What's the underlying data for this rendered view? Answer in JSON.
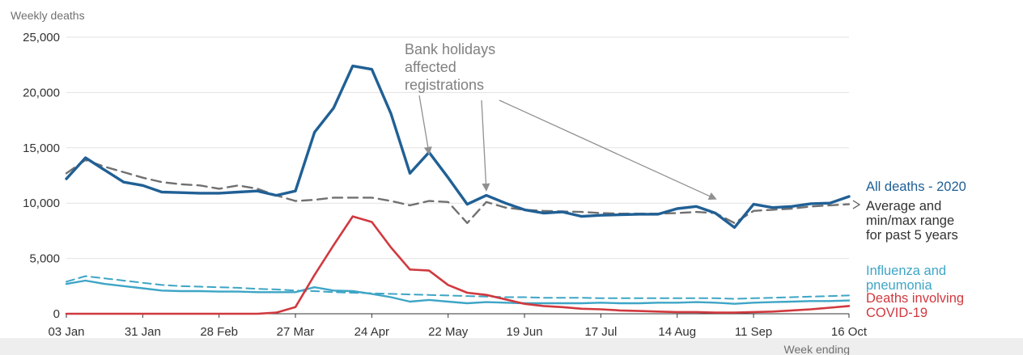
{
  "chart_data": {
    "type": "line",
    "ylabel": "Weekly deaths",
    "xlabel": "Week ending",
    "ylim": [
      0,
      25000
    ],
    "y_ticks": [
      "0",
      "5,000",
      "10,000",
      "15,000",
      "20,000",
      "25,000"
    ],
    "y_tick_values": [
      0,
      5000,
      10000,
      15000,
      20000,
      25000
    ],
    "x_ticks": [
      "03 Jan",
      "31 Jan",
      "28 Feb",
      "27 Mar",
      "24 Apr",
      "22 May",
      "19 Jun",
      "17 Jul",
      "14 Aug",
      "11 Sep",
      "16 Oct"
    ],
    "x_tick_weeks": [
      1,
      5,
      9,
      13,
      17,
      21,
      25,
      29,
      33,
      37,
      42
    ],
    "weeks": [
      1,
      2,
      3,
      4,
      5,
      6,
      7,
      8,
      9,
      10,
      11,
      12,
      13,
      14,
      15,
      16,
      17,
      18,
      19,
      20,
      21,
      22,
      23,
      24,
      25,
      26,
      27,
      28,
      29,
      30,
      31,
      32,
      33,
      34,
      35,
      36,
      37,
      38,
      39,
      40,
      41,
      42
    ],
    "grid": true,
    "series": [
      {
        "name": "All deaths - 2020",
        "color": "#206095",
        "style": "solid",
        "values": [
          12200,
          14100,
          13000,
          11900,
          11600,
          11000,
          10950,
          10900,
          10900,
          11000,
          11100,
          10700,
          11100,
          16400,
          18600,
          22400,
          22100,
          18100,
          12700,
          14600,
          12300,
          9900,
          10700,
          10000,
          9400,
          9100,
          9200,
          8800,
          8900,
          8950,
          9000,
          9000,
          9500,
          9700,
          9100,
          7800,
          9900,
          9600,
          9700,
          9950,
          10000,
          10600
        ]
      },
      {
        "name": "Average and min/max range for past 5 years",
        "color": "#707070",
        "style": "dashed",
        "values": [
          12700,
          13900,
          13300,
          12800,
          12300,
          11900,
          11700,
          11600,
          11300,
          11600,
          11300,
          10700,
          10200,
          10300,
          10500,
          10500,
          10500,
          10200,
          9800,
          10200,
          10100,
          8200,
          10100,
          9600,
          9400,
          9300,
          9250,
          9200,
          9100,
          9050,
          9050,
          9050,
          9100,
          9200,
          9100,
          8200,
          9300,
          9400,
          9500,
          9700,
          9800,
          9900
        ]
      },
      {
        "name": "Influenza and pneumonia",
        "color": "#3ea5c6",
        "style": "solid",
        "values": [
          2700,
          3000,
          2700,
          2500,
          2300,
          2100,
          2050,
          2050,
          2000,
          2000,
          1950,
          1950,
          1950,
          2400,
          2100,
          2050,
          1800,
          1500,
          1100,
          1250,
          1100,
          950,
          1050,
          1000,
          950,
          950,
          950,
          950,
          1000,
          950,
          950,
          1000,
          1000,
          1050,
          1000,
          900,
          1000,
          1050,
          1100,
          1150,
          1150,
          1200
        ]
      },
      {
        "name": "Influenza and pneumonia (5-year average)",
        "color": "#3ea5c6",
        "style": "dashed",
        "values": [
          2900,
          3400,
          3200,
          3000,
          2800,
          2600,
          2500,
          2450,
          2400,
          2350,
          2250,
          2200,
          2100,
          2050,
          1950,
          1900,
          1850,
          1800,
          1750,
          1700,
          1650,
          1600,
          1550,
          1500,
          1500,
          1450,
          1450,
          1450,
          1400,
          1400,
          1400,
          1400,
          1400,
          1400,
          1400,
          1350,
          1400,
          1450,
          1500,
          1550,
          1600,
          1650
        ]
      },
      {
        "name": "Deaths involving COVID-19",
        "color": "#d0393f",
        "style": "solid",
        "values": [
          0,
          0,
          0,
          0,
          0,
          0,
          0,
          0,
          0,
          0,
          0,
          100,
          600,
          3500,
          6200,
          8800,
          8300,
          6000,
          4000,
          3900,
          2600,
          1900,
          1700,
          1300,
          900,
          700,
          600,
          450,
          400,
          300,
          250,
          200,
          150,
          150,
          100,
          100,
          150,
          200,
          300,
          400,
          550,
          700
        ]
      }
    ],
    "series_labels": [
      {
        "lines": [
          "All deaths - 2020"
        ],
        "color": "#206095"
      },
      {
        "lines": [
          "Average and",
          "min/max range",
          "for past 5 years"
        ],
        "color": "#333333"
      },
      {
        "lines": [
          "Influenza and",
          "pneumonia"
        ],
        "color": "#3ea5c6"
      },
      {
        "lines": [
          "Deaths involving",
          "COVID-19"
        ],
        "color": "#d0393f"
      }
    ],
    "annotation": {
      "lines": [
        "Bank holidays",
        "affected",
        "registrations"
      ],
      "color": "#909090"
    }
  }
}
